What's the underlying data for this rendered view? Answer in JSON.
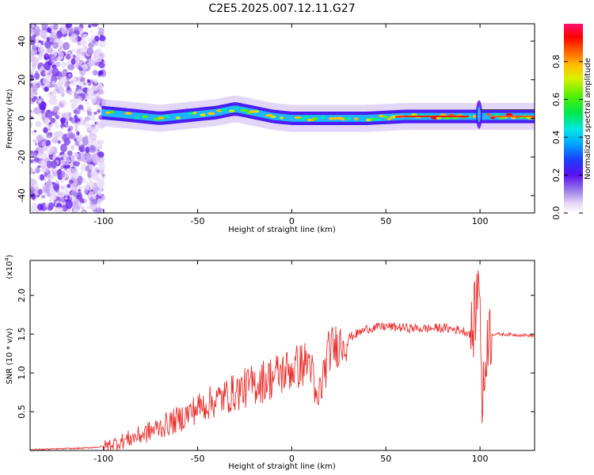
{
  "title": "C2E5.2025.007.12.11.G27",
  "chart_data": [
    {
      "type": "heatmap",
      "title": "C2E5.2025.007.12.11.G27",
      "xlabel": "Height of straight line (km)",
      "ylabel": "Frequency (Hz)",
      "xlim": [
        -139,
        129
      ],
      "ylim": [
        -49,
        49
      ],
      "x_ticks": [
        -100,
        -50,
        0,
        50,
        100
      ],
      "y_ticks": [
        40,
        20,
        0,
        -20,
        -40
      ],
      "colorbar": {
        "label": "Normalized spectral amplitude",
        "range": [
          0,
          1
        ],
        "ticks": [
          0.0,
          0.2,
          0.4,
          0.6,
          0.8
        ]
      },
      "ridge_frequency": [
        {
          "x": -101,
          "y": 3
        },
        {
          "x": -90,
          "y": 2
        },
        {
          "x": -80,
          "y": 1
        },
        {
          "x": -70,
          "y": 0
        },
        {
          "x": -60,
          "y": 1
        },
        {
          "x": -50,
          "y": 2
        },
        {
          "x": -40,
          "y": 3
        },
        {
          "x": -30,
          "y": 5
        },
        {
          "x": -20,
          "y": 3
        },
        {
          "x": -10,
          "y": 1
        },
        {
          "x": 0,
          "y": 0
        },
        {
          "x": 10,
          "y": 0
        },
        {
          "x": 20,
          "y": 0
        },
        {
          "x": 40,
          "y": 0
        },
        {
          "x": 60,
          "y": 1
        },
        {
          "x": 80,
          "y": 1
        },
        {
          "x": 100,
          "y": 1
        },
        {
          "x": 129,
          "y": 1
        }
      ]
    },
    {
      "type": "line",
      "xlabel": "Height of straight line (km)",
      "ylabel": "SNR (10 * v/v)",
      "y_multiplier": "(x10^4)",
      "xlim": [
        -139,
        129
      ],
      "ylim": [
        0,
        2.45
      ],
      "x_ticks": [
        -100,
        -50,
        0,
        50,
        100
      ],
      "y_ticks": [
        0.5,
        1.0,
        1.5,
        2.0
      ],
      "color": "#e8312f",
      "series": [
        {
          "values": [
            {
              "x": -139,
              "y": 0.01
            },
            {
              "x": -110,
              "y": 0.03
            },
            {
              "x": -100,
              "y": 0.05
            },
            {
              "x": -90,
              "y": 0.12
            },
            {
              "x": -80,
              "y": 0.2
            },
            {
              "x": -70,
              "y": 0.3
            },
            {
              "x": -60,
              "y": 0.4
            },
            {
              "x": -50,
              "y": 0.55
            },
            {
              "x": -40,
              "y": 0.65
            },
            {
              "x": -30,
              "y": 0.75
            },
            {
              "x": -20,
              "y": 0.85
            },
            {
              "x": -10,
              "y": 0.95
            },
            {
              "x": 0,
              "y": 1.05
            },
            {
              "x": 10,
              "y": 1.15
            },
            {
              "x": 13,
              "y": 0.55
            },
            {
              "x": 20,
              "y": 1.3
            },
            {
              "x": 30,
              "y": 1.45
            },
            {
              "x": 40,
              "y": 1.57
            },
            {
              "x": 50,
              "y": 1.6
            },
            {
              "x": 60,
              "y": 1.58
            },
            {
              "x": 70,
              "y": 1.57
            },
            {
              "x": 80,
              "y": 1.58
            },
            {
              "x": 90,
              "y": 1.55
            },
            {
              "x": 96,
              "y": 1.5
            },
            {
              "x": 100,
              "y": 2.3
            },
            {
              "x": 101,
              "y": 0.45
            },
            {
              "x": 104,
              "y": 1.5
            },
            {
              "x": 110,
              "y": 1.5
            },
            {
              "x": 120,
              "y": 1.49
            },
            {
              "x": 129,
              "y": 1.48
            }
          ]
        }
      ]
    }
  ]
}
